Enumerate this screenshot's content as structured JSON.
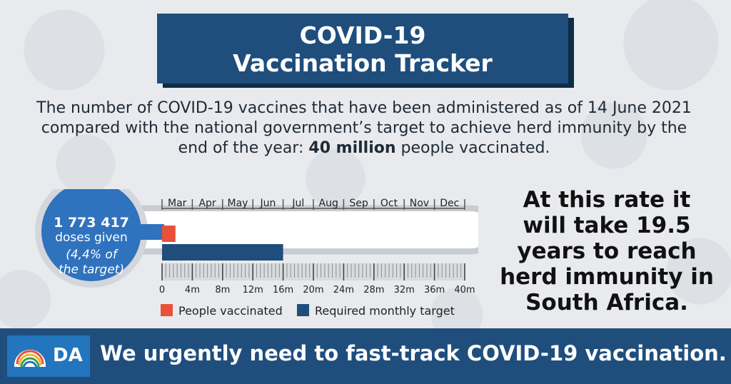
{
  "title": {
    "line1": "COVID-19",
    "line2": "Vaccination Tracker"
  },
  "description": {
    "part1": "The number of COVID-19 vaccines that have been administered as of 14 June 2021 compared with the national government’s target to achieve herd immunity by the end of the year: ",
    "bold": "40 million",
    "part2": " people vaccinated."
  },
  "callout": {
    "text": "At this rate it will take 19.5 years to reach herd immunity in South Africa."
  },
  "footer": {
    "logo_text": "DA",
    "message": "We urgently need to fast-track COVID-19 vaccination."
  },
  "colors": {
    "navy": "#1f4e7d",
    "people_vaccinated": "#e8503a",
    "required_target": "#1f4e7d",
    "bulb": "#2f72bd"
  },
  "chart_data": {
    "type": "bar",
    "orientation": "horizontal",
    "bulb": {
      "value": "1 773 417",
      "line1": "doses given",
      "line2": "(4,4% of",
      "line3": "the target)"
    },
    "months": [
      "Mar",
      "Apr",
      "May",
      "Jun",
      "Jul",
      "Aug",
      "Sep",
      "Oct",
      "Nov",
      "Dec"
    ],
    "xticks": [
      "0",
      "4m",
      "8m",
      "12m",
      "16m",
      "20m",
      "24m",
      "28m",
      "32m",
      "36m",
      "40m"
    ],
    "xlim": [
      0,
      40
    ],
    "series": [
      {
        "name": "People vaccinated",
        "value": 1.773417,
        "color": "#e8503a"
      },
      {
        "name": "Required monthly target",
        "value": 16,
        "color": "#1f4e7d"
      }
    ],
    "legend": "bottom"
  }
}
